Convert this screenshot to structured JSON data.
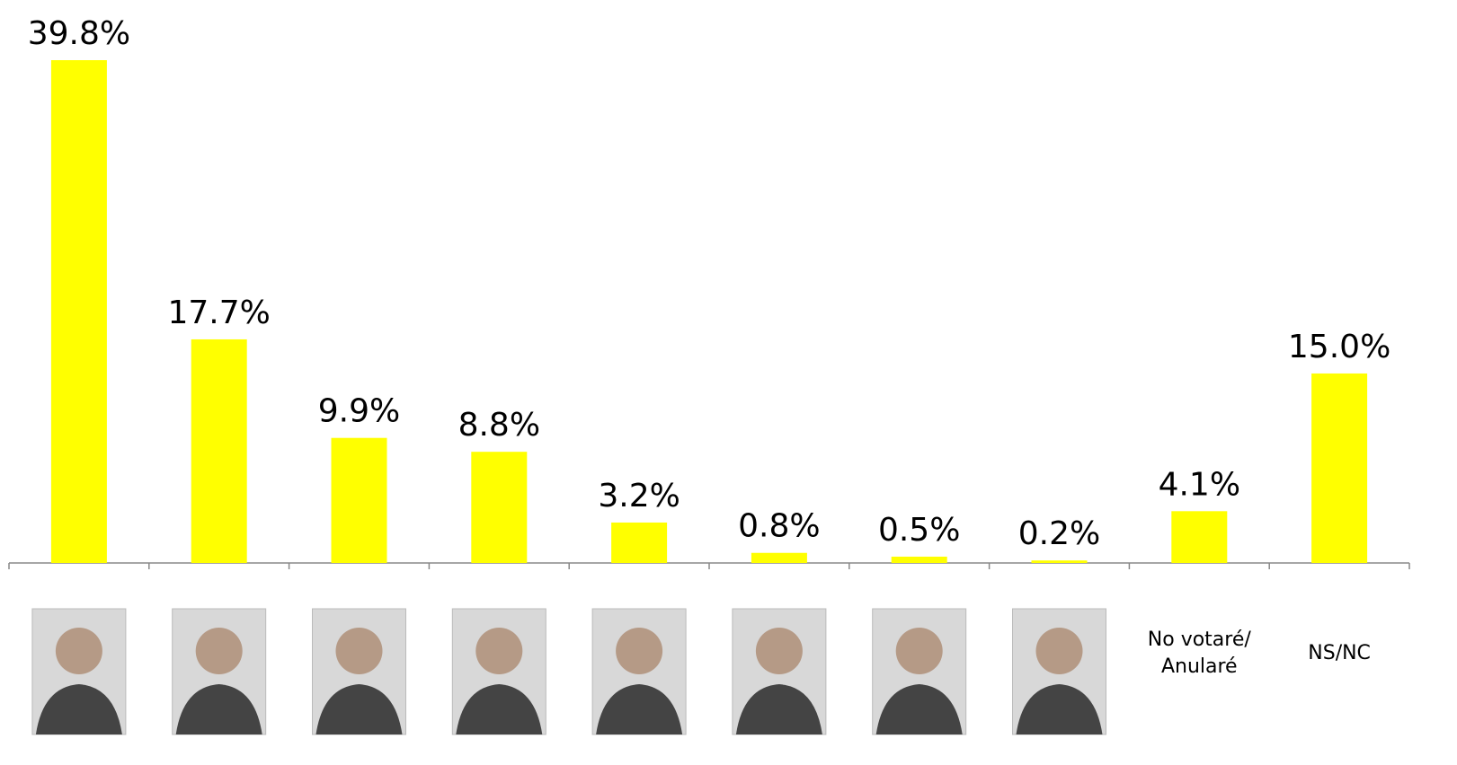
{
  "chart_data": {
    "type": "bar",
    "categories": [
      null,
      null,
      null,
      null,
      null,
      null,
      null,
      null,
      "No votaré/ Anularé",
      "NS/NC"
    ],
    "values": [
      39.8,
      17.7,
      9.9,
      8.8,
      3.2,
      0.8,
      0.5,
      0.2,
      4.1,
      15.0
    ],
    "value_labels": [
      "39.8%",
      "17.7%",
      "9.9%",
      "8.8%",
      "3.2%",
      "0.8%",
      "0.5%",
      "0.2%",
      "4.1%",
      "15.0%"
    ],
    "color": "#ffff00"
  }
}
